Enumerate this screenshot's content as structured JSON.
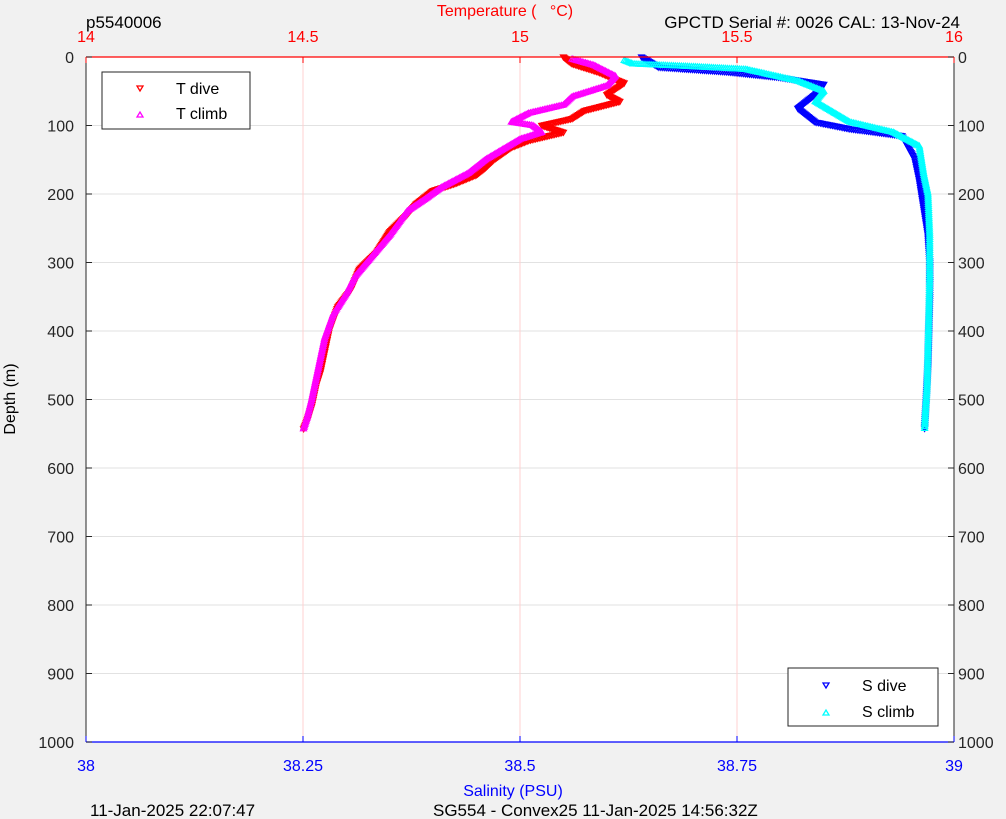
{
  "header": {
    "left_label": "p5540006",
    "right_label": "GPCTD Serial #: 0026 CAL: 13-Nov-24"
  },
  "footer": {
    "left_label": "11-Jan-2025 22:07:47",
    "center_label": "SG554 - Convex25 11-Jan-2025 14:56:32Z"
  },
  "colors": {
    "temperature_axis": "#ff0000",
    "salinity_axis": "#0000ff",
    "t_dive": "#ff0000",
    "t_climb": "#ff00ff",
    "s_dive": "#0000ff",
    "s_climb": "#00ffff",
    "t_grid": "#ffd0d0",
    "y_grid": "#e2e2e2"
  },
  "chart_data": {
    "type": "scatter",
    "grid": true,
    "y_axis": {
      "label": "Depth (m)",
      "range": [
        0,
        1000
      ],
      "reversed": true,
      "ticks": [
        "0",
        "100",
        "200",
        "300",
        "400",
        "500",
        "600",
        "700",
        "800",
        "900",
        "1000"
      ]
    },
    "top_axis": {
      "label": "Temperature (   °C)",
      "range": [
        14,
        16
      ],
      "ticks": [
        "14",
        "14.5",
        "15",
        "15.5",
        "16"
      ]
    },
    "bottom_axis": {
      "label": "Salinity (PSU)",
      "range": [
        38,
        39
      ],
      "ticks": [
        "38",
        "38.25",
        "38.5",
        "38.75",
        "39"
      ]
    },
    "legends": [
      {
        "placement": "top-left",
        "entries": [
          "T dive",
          "T climb"
        ]
      },
      {
        "placement": "bottom-right",
        "entries": [
          "S dive",
          "S climb"
        ]
      }
    ],
    "series": [
      {
        "name": "T dive",
        "axis": "temperature",
        "marker": "triangle-down",
        "points": [
          [
            15.1,
            0
          ],
          [
            15.12,
            10
          ],
          [
            15.18,
            22
          ],
          [
            15.24,
            38
          ],
          [
            15.2,
            55
          ],
          [
            15.23,
            65
          ],
          [
            15.15,
            78
          ],
          [
            15.12,
            90
          ],
          [
            15.05,
            100
          ],
          [
            15.1,
            110
          ],
          [
            15.02,
            122
          ],
          [
            14.98,
            132
          ],
          [
            14.94,
            150
          ],
          [
            14.92,
            162
          ],
          [
            14.9,
            172
          ],
          [
            14.85,
            185
          ],
          [
            14.8,
            195
          ],
          [
            14.76,
            215
          ],
          [
            14.74,
            230
          ],
          [
            14.7,
            255
          ],
          [
            14.67,
            285
          ],
          [
            14.63,
            310
          ],
          [
            14.61,
            340
          ],
          [
            14.58,
            365
          ],
          [
            14.56,
            400
          ],
          [
            14.55,
            430
          ],
          [
            14.54,
            460
          ],
          [
            14.53,
            480
          ],
          [
            14.52,
            510
          ],
          [
            14.51,
            530
          ],
          [
            14.5,
            545
          ]
        ]
      },
      {
        "name": "T climb",
        "axis": "temperature",
        "marker": "triangle-up",
        "points": [
          [
            15.12,
            3
          ],
          [
            15.17,
            12
          ],
          [
            15.22,
            28
          ],
          [
            15.2,
            42
          ],
          [
            15.12,
            58
          ],
          [
            15.1,
            70
          ],
          [
            15.02,
            82
          ],
          [
            14.98,
            95
          ],
          [
            15.03,
            100
          ],
          [
            15.05,
            110
          ],
          [
            15.0,
            120
          ],
          [
            14.96,
            135
          ],
          [
            14.92,
            150
          ],
          [
            14.88,
            170
          ],
          [
            14.82,
            190
          ],
          [
            14.78,
            208
          ],
          [
            14.74,
            225
          ],
          [
            14.7,
            260
          ],
          [
            14.66,
            290
          ],
          [
            14.62,
            320
          ],
          [
            14.6,
            345
          ],
          [
            14.57,
            375
          ],
          [
            14.55,
            410
          ],
          [
            14.54,
            440
          ],
          [
            14.53,
            470
          ],
          [
            14.52,
            500
          ],
          [
            14.51,
            525
          ],
          [
            14.5,
            545
          ]
        ]
      },
      {
        "name": "S dive",
        "axis": "salinity",
        "marker": "triangle-down",
        "points": [
          [
            38.64,
            0
          ],
          [
            38.66,
            15
          ],
          [
            38.74,
            22
          ],
          [
            38.8,
            30
          ],
          [
            38.85,
            40
          ],
          [
            38.84,
            55
          ],
          [
            38.82,
            75
          ],
          [
            38.84,
            95
          ],
          [
            38.88,
            105
          ],
          [
            38.94,
            115
          ],
          [
            38.955,
            150
          ],
          [
            38.96,
            180
          ],
          [
            38.965,
            220
          ],
          [
            38.97,
            260
          ],
          [
            38.972,
            300
          ],
          [
            38.972,
            350
          ],
          [
            38.971,
            400
          ],
          [
            38.97,
            450
          ],
          [
            38.968,
            500
          ],
          [
            38.966,
            545
          ]
        ]
      },
      {
        "name": "S climb",
        "axis": "salinity",
        "marker": "triangle-up",
        "points": [
          [
            38.62,
            5
          ],
          [
            38.63,
            10
          ],
          [
            38.7,
            14
          ],
          [
            38.76,
            18
          ],
          [
            38.82,
            35
          ],
          [
            38.85,
            50
          ],
          [
            38.84,
            65
          ],
          [
            38.86,
            80
          ],
          [
            38.88,
            95
          ],
          [
            38.93,
            110
          ],
          [
            38.96,
            130
          ],
          [
            38.965,
            170
          ],
          [
            38.97,
            200
          ],
          [
            38.972,
            260
          ],
          [
            38.972,
            320
          ],
          [
            38.971,
            380
          ],
          [
            38.97,
            430
          ],
          [
            38.969,
            480
          ],
          [
            38.967,
            520
          ],
          [
            38.966,
            545
          ]
        ]
      }
    ]
  }
}
